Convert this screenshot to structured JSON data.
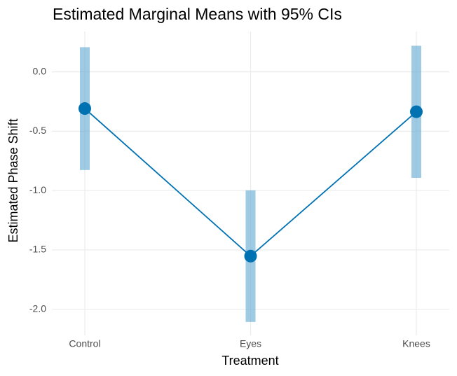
{
  "chart_data": {
    "type": "line",
    "title": "Estimated Marginal Means with 95% CIs",
    "x_label": "Treatment",
    "y_label": "Estimated Phase Shift",
    "categories": [
      "Control",
      "Eyes",
      "Knees"
    ],
    "series": [
      {
        "values": [
          -0.309,
          -1.552,
          -0.336
        ],
        "color": "#0072b2",
        "ci_lower": [
          -0.827,
          -2.107,
          -0.893
        ],
        "ci_upper": [
          0.208,
          -0.998,
          0.22
        ],
        "ci_color": "#6baed6"
      }
    ],
    "ylim": [
      -2.22,
      0.34
    ],
    "yticks": [
      {
        "value": 0,
        "label": "0.0"
      },
      -0.5,
      {
        "value": -1,
        "label": "-1.0"
      },
      -1.5,
      {
        "value": -2,
        "label": "-2.0"
      }
    ],
    "grid": true
  }
}
